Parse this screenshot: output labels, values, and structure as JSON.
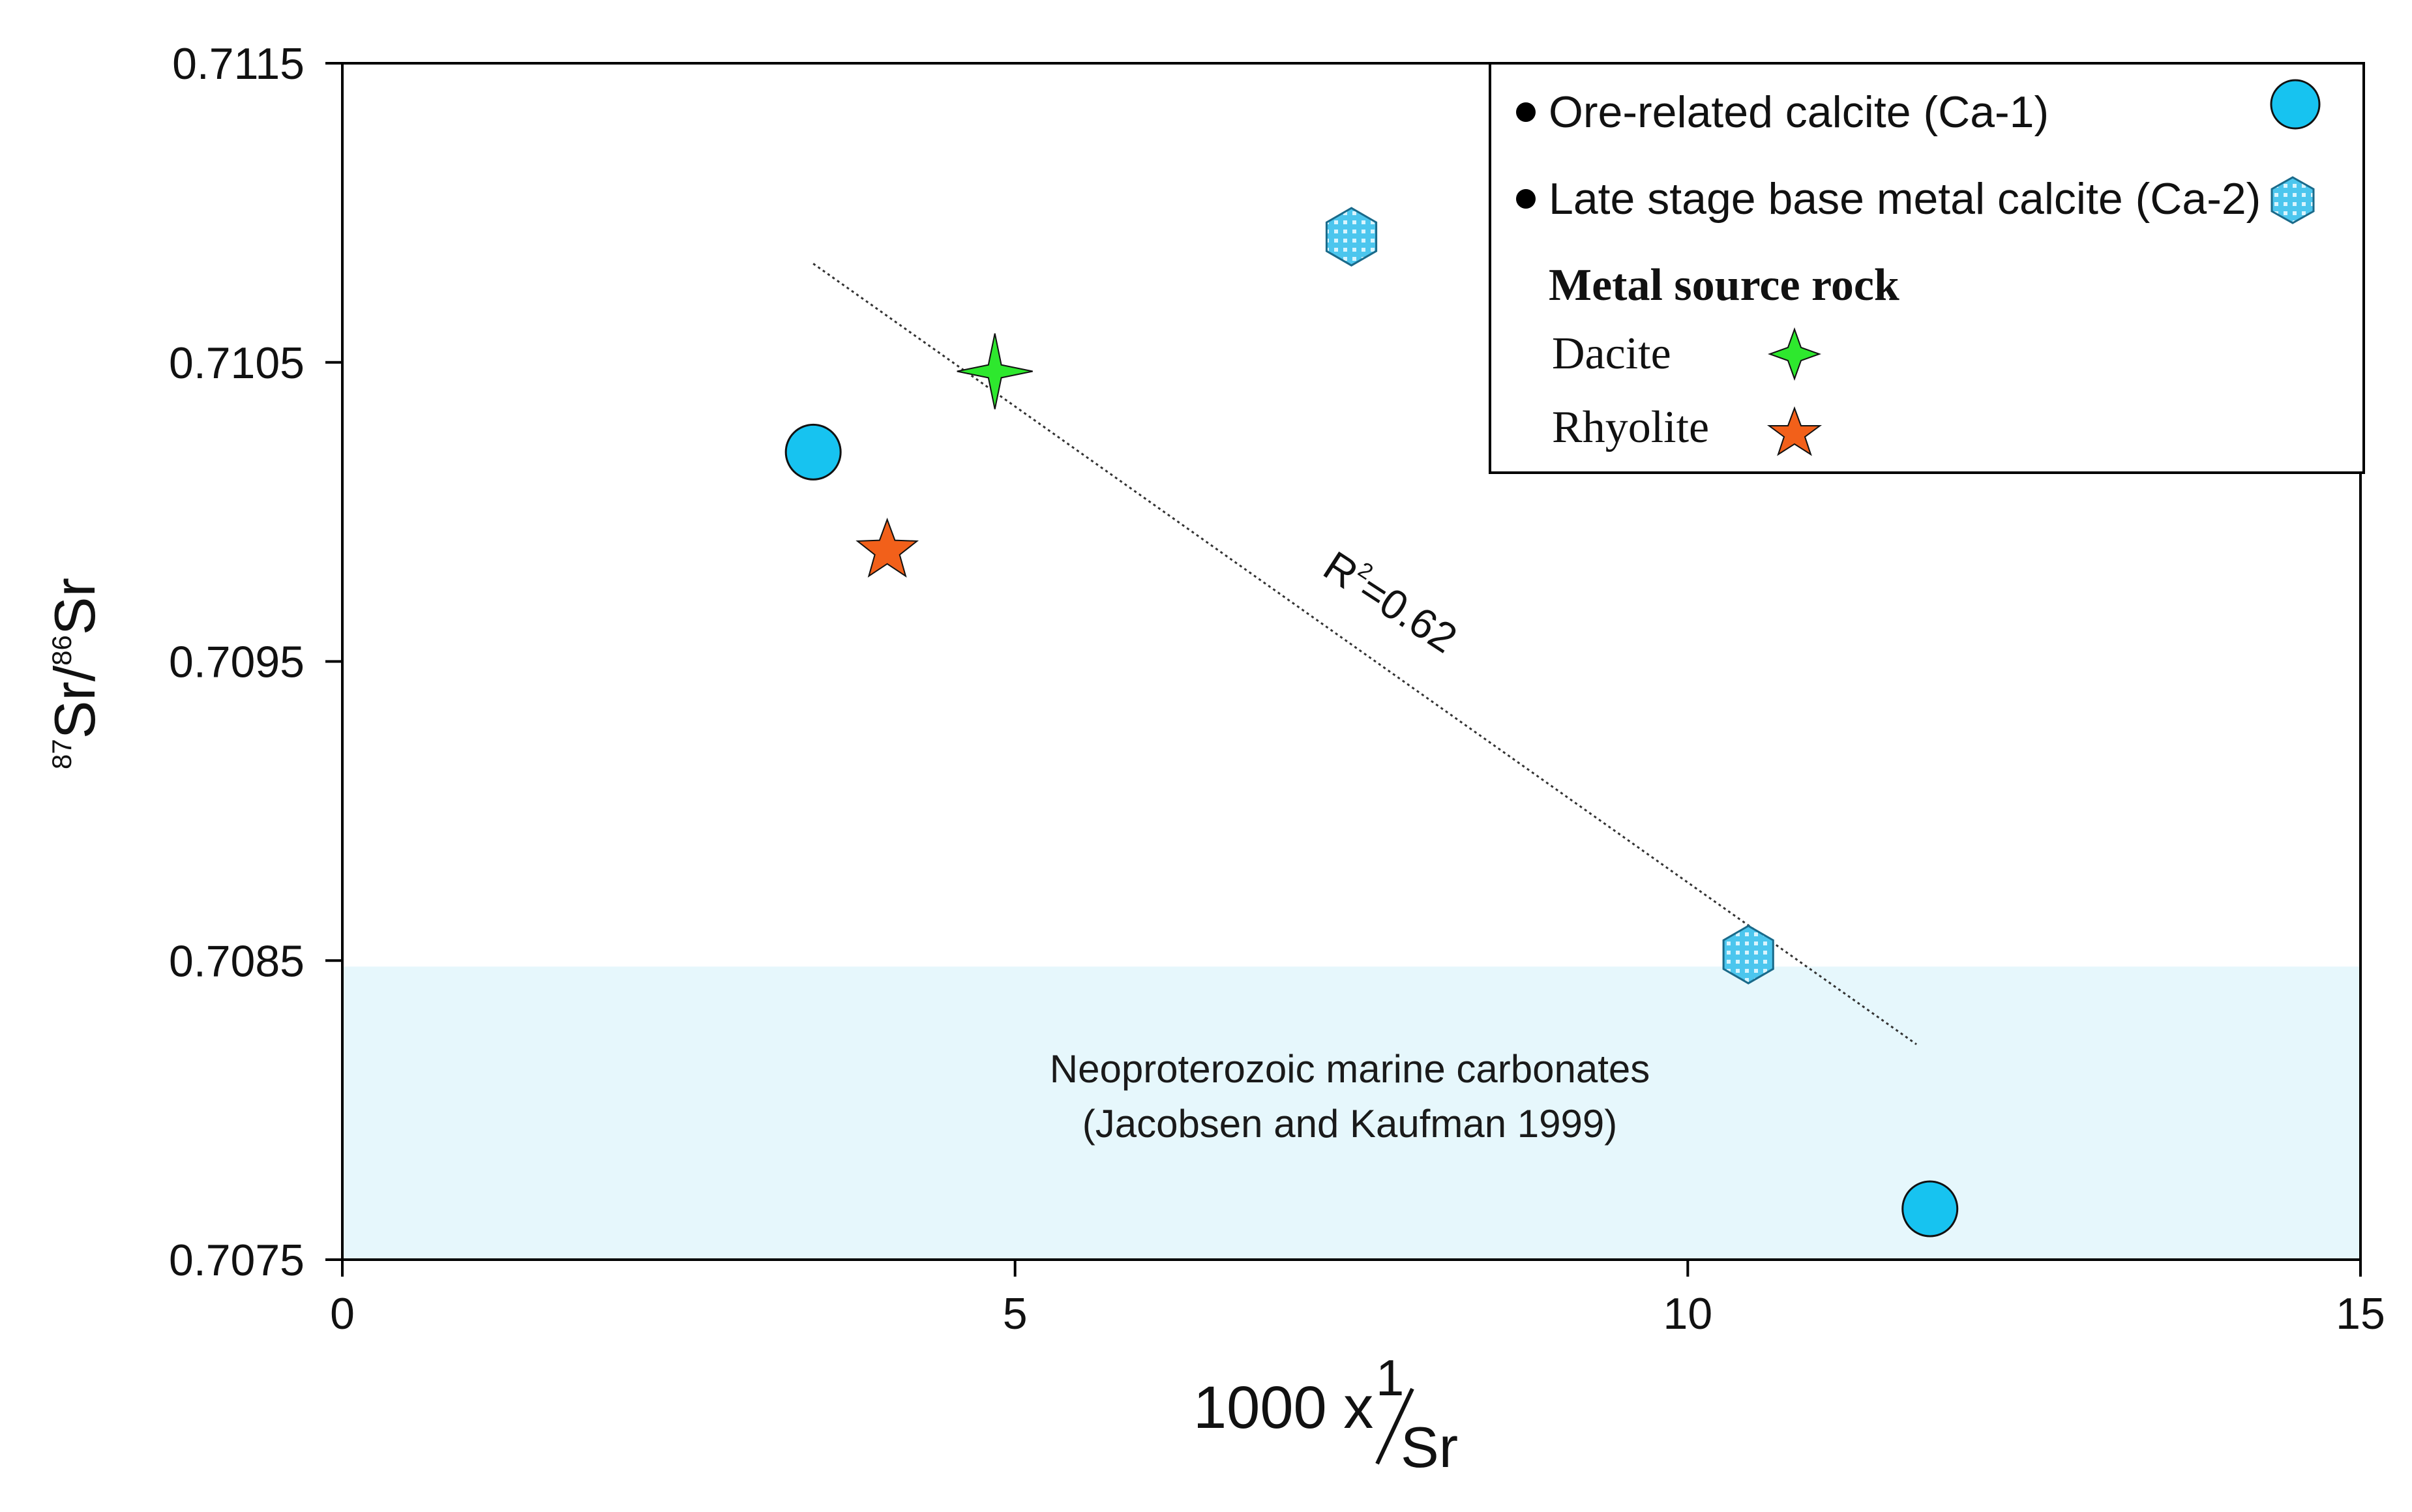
{
  "chart_data": {
    "type": "scatter",
    "title": "",
    "xlabel": {
      "prefix": "1000 x ",
      "numerator": "1",
      "denominator": "Sr"
    },
    "ylabel": {
      "sup1": "87",
      "sr1": "Sr/",
      "sup2": "86",
      "sr2": "Sr"
    },
    "xlim": [
      0,
      15
    ],
    "ylim": [
      0.7075,
      0.7115
    ],
    "xticks": [
      0,
      5,
      10,
      15
    ],
    "xtick_labels": [
      "0",
      "5",
      "10",
      "15"
    ],
    "yticks": [
      0.7075,
      0.7085,
      0.7095,
      0.7105,
      0.7115
    ],
    "ytick_labels": [
      "0.7075",
      "0.7085",
      "0.7095",
      "0.7105",
      "0.7115"
    ],
    "grid": false,
    "legend_position": "top-right",
    "band": {
      "y_from": 0.7075,
      "y_to": 0.70848,
      "color": "#e6f7fc",
      "label_line1": "Neoproterozoic marine carbonates",
      "label_line2": "(Jacobsen and Kaufman 1999)"
    },
    "trendline": {
      "x": [
        3.5,
        11.7
      ],
      "y": [
        0.71083,
        0.70822
      ],
      "label": "R²=0.62",
      "label_base": "R",
      "label_sup": "2",
      "label_rest": "=0.62"
    },
    "series": [
      {
        "name": "Ore-related calcite (Ca-1)",
        "marker": "circle",
        "color": "#17c3f0",
        "points": [
          {
            "x": 3.5,
            "y": 0.7102
          },
          {
            "x": 11.8,
            "y": 0.70767
          }
        ]
      },
      {
        "name": "Late stage base metal calcite (Ca-2)",
        "marker": "hexagon",
        "color": "#4cc6ee",
        "points": [
          {
            "x": 7.5,
            "y": 0.71092
          },
          {
            "x": 10.45,
            "y": 0.70852
          }
        ]
      },
      {
        "name": "Dacite",
        "marker": "star4",
        "color": "#2ee82e",
        "points": [
          {
            "x": 4.85,
            "y": 0.71047
          }
        ]
      },
      {
        "name": "Rhyolite",
        "marker": "star5",
        "color": "#f2601a",
        "points": [
          {
            "x": 4.05,
            "y": 0.70987
          }
        ]
      }
    ],
    "legend": {
      "ca1_label": "Ore-related calcite (Ca-1)",
      "ca2_label": "Late stage base metal calcite (Ca-2)",
      "heading": "Metal source rock",
      "dacite_label": "Dacite",
      "rhyolite_label": "Rhyolite"
    }
  }
}
